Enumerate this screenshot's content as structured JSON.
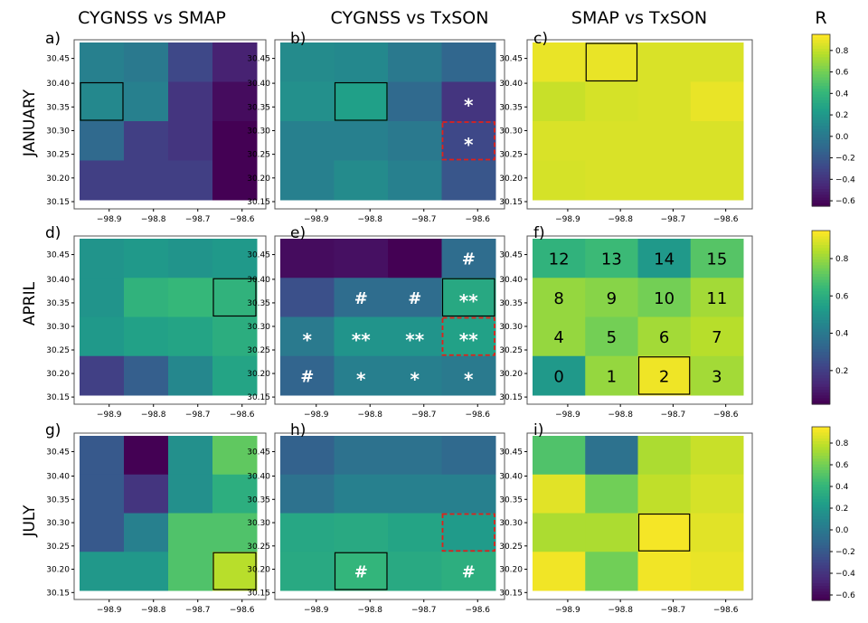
{
  "column_titles": [
    "CYGNSS vs SMAP",
    "CYGNSS vs TxSON",
    "SMAP vs TxSON"
  ],
  "row_titles": [
    "JANUARY",
    "APRIL",
    "JULY"
  ],
  "colorbar_title": "R",
  "colors": {
    "box": "#000000",
    "dashed_box": "#e0201a",
    "symbol": "#ffffff"
  },
  "chart_data": {
    "type": "heatmap",
    "colormap": "viridis",
    "x_ticks": [
      "-98.9",
      "-98.8",
      "-98.7",
      "-98.6"
    ],
    "y_ticks": [
      "30.45",
      "30.40",
      "30.35",
      "30.30",
      "30.25",
      "30.20",
      "30.15"
    ],
    "colorbars": [
      {
        "min": -0.65,
        "max": 0.95,
        "ticks": [
          "0.8",
          "0.6",
          "0.4",
          "0.2",
          "0.0",
          "−0.2",
          "−0.4",
          "−0.6"
        ],
        "tick_values": [
          0.8,
          0.6,
          0.4,
          0.2,
          0.0,
          -0.2,
          -0.4,
          -0.6
        ]
      },
      {
        "min": 0.02,
        "max": 0.95,
        "ticks": [
          "0.8",
          "0.6",
          "0.4",
          "0.2"
        ],
        "tick_values": [
          0.8,
          0.6,
          0.4,
          0.2
        ]
      },
      {
        "min": -0.65,
        "max": 0.95,
        "ticks": [
          "0.8",
          "0.6",
          "0.4",
          "0.2",
          "0.0",
          "−0.2",
          "−0.4",
          "−0.6"
        ],
        "tick_values": [
          0.8,
          0.6,
          0.4,
          0.2,
          0.0,
          -0.2,
          -0.4,
          -0.6
        ]
      }
    ],
    "panels": [
      {
        "label": "a)",
        "row": 0,
        "col": 0,
        "values": [
          [
            0.05,
            0.0,
            -0.3,
            -0.5
          ],
          [
            0.1,
            0.05,
            -0.4,
            -0.6
          ],
          [
            -0.1,
            -0.35,
            -0.4,
            -0.65
          ],
          [
            -0.35,
            -0.35,
            -0.35,
            -0.65
          ]
        ],
        "boxes": [
          {
            "r": 1,
            "c": 0,
            "style": "solid"
          }
        ],
        "symbols": []
      },
      {
        "label": "b)",
        "row": 0,
        "col": 1,
        "values": [
          [
            0.12,
            0.1,
            0.0,
            -0.12
          ],
          [
            0.15,
            0.25,
            -0.1,
            -0.4
          ],
          [
            0.05,
            0.05,
            0.0,
            -0.3
          ],
          [
            0.05,
            0.12,
            0.05,
            -0.22
          ]
        ],
        "boxes": [
          {
            "r": 1,
            "c": 1,
            "style": "solid"
          },
          {
            "r": 2,
            "c": 3,
            "style": "dashed"
          }
        ],
        "symbols": [
          {
            "r": 1,
            "c": 3,
            "text": "*"
          },
          {
            "r": 2,
            "c": 3,
            "text": "*"
          }
        ]
      },
      {
        "label": "c)",
        "row": 0,
        "col": 2,
        "values": [
          [
            0.9,
            0.9,
            0.86,
            0.86
          ],
          [
            0.82,
            0.85,
            0.86,
            0.9
          ],
          [
            0.86,
            0.86,
            0.86,
            0.86
          ],
          [
            0.85,
            0.86,
            0.86,
            0.86
          ]
        ],
        "boxes": [
          {
            "r": 0,
            "c": 1,
            "style": "solid"
          }
        ],
        "symbols": []
      },
      {
        "label": "d)",
        "row": 1,
        "col": 0,
        "values": [
          [
            0.5,
            0.52,
            0.5,
            0.52
          ],
          [
            0.5,
            0.62,
            0.64,
            0.62
          ],
          [
            0.52,
            0.55,
            0.56,
            0.6
          ],
          [
            0.2,
            0.3,
            0.45,
            0.56
          ]
        ],
        "boxes": [
          {
            "r": 1,
            "c": 3,
            "style": "solid"
          }
        ],
        "symbols": []
      },
      {
        "label": "e)",
        "row": 1,
        "col": 1,
        "values": [
          [
            0.05,
            0.06,
            0.02,
            0.35
          ],
          [
            0.25,
            0.35,
            0.35,
            0.58
          ],
          [
            0.4,
            0.5,
            0.5,
            0.55
          ],
          [
            0.32,
            0.42,
            0.42,
            0.4
          ]
        ],
        "boxes": [
          {
            "r": 1,
            "c": 3,
            "style": "solid"
          },
          {
            "r": 2,
            "c": 3,
            "style": "dashed"
          }
        ],
        "symbols": [
          {
            "r": 0,
            "c": 3,
            "text": "#"
          },
          {
            "r": 1,
            "c": 1,
            "text": "#"
          },
          {
            "r": 1,
            "c": 2,
            "text": "#"
          },
          {
            "r": 1,
            "c": 3,
            "text": "**"
          },
          {
            "r": 2,
            "c": 0,
            "text": "*"
          },
          {
            "r": 2,
            "c": 1,
            "text": "**"
          },
          {
            "r": 2,
            "c": 2,
            "text": "**"
          },
          {
            "r": 2,
            "c": 3,
            "text": "**"
          },
          {
            "r": 3,
            "c": 0,
            "text": "#"
          },
          {
            "r": 3,
            "c": 1,
            "text": "*"
          },
          {
            "r": 3,
            "c": 2,
            "text": "*"
          },
          {
            "r": 3,
            "c": 3,
            "text": "*"
          }
        ]
      },
      {
        "label": "f)",
        "row": 1,
        "col": 2,
        "values": [
          [
            0.62,
            0.65,
            0.52,
            0.7
          ],
          [
            0.8,
            0.78,
            0.75,
            0.82
          ],
          [
            0.8,
            0.75,
            0.82,
            0.85
          ],
          [
            0.52,
            0.8,
            0.93,
            0.82
          ]
        ],
        "boxes": [
          {
            "r": 3,
            "c": 2,
            "style": "solid"
          }
        ],
        "cell_labels": [
          [
            "12",
            "13",
            "14",
            "15"
          ],
          [
            "8",
            "9",
            "10",
            "11"
          ],
          [
            "4",
            "5",
            "6",
            "7"
          ],
          [
            "0",
            "1",
            "2",
            "3"
          ]
        ],
        "symbols": []
      },
      {
        "label": "g)",
        "row": 2,
        "col": 0,
        "values": [
          [
            -0.2,
            -0.65,
            0.15,
            0.55
          ],
          [
            -0.2,
            -0.4,
            0.15,
            0.35
          ],
          [
            -0.2,
            0.05,
            0.5,
            0.5
          ],
          [
            0.2,
            0.2,
            0.5,
            0.78
          ]
        ],
        "boxes": [
          {
            "r": 3,
            "c": 3,
            "style": "solid"
          }
        ],
        "symbols": []
      },
      {
        "label": "h)",
        "row": 2,
        "col": 1,
        "values": [
          [
            -0.15,
            -0.05,
            -0.05,
            -0.1
          ],
          [
            -0.05,
            0.05,
            0.05,
            0.05
          ],
          [
            0.3,
            0.32,
            0.28,
            0.22
          ],
          [
            0.32,
            0.4,
            0.32,
            0.35
          ]
        ],
        "boxes": [
          {
            "r": 3,
            "c": 1,
            "style": "solid"
          },
          {
            "r": 2,
            "c": 3,
            "style": "dashed"
          }
        ],
        "symbols": [
          {
            "r": 3,
            "c": 1,
            "text": "#"
          },
          {
            "r": 3,
            "c": 3,
            "text": "#"
          }
        ]
      },
      {
        "label": "i)",
        "row": 2,
        "col": 2,
        "values": [
          [
            0.5,
            -0.05,
            0.75,
            0.82
          ],
          [
            0.88,
            0.6,
            0.8,
            0.85
          ],
          [
            0.75,
            0.75,
            0.93,
            0.88
          ],
          [
            0.92,
            0.6,
            0.92,
            0.9
          ]
        ],
        "boxes": [
          {
            "r": 2,
            "c": 2,
            "style": "solid"
          }
        ],
        "symbols": []
      }
    ]
  }
}
